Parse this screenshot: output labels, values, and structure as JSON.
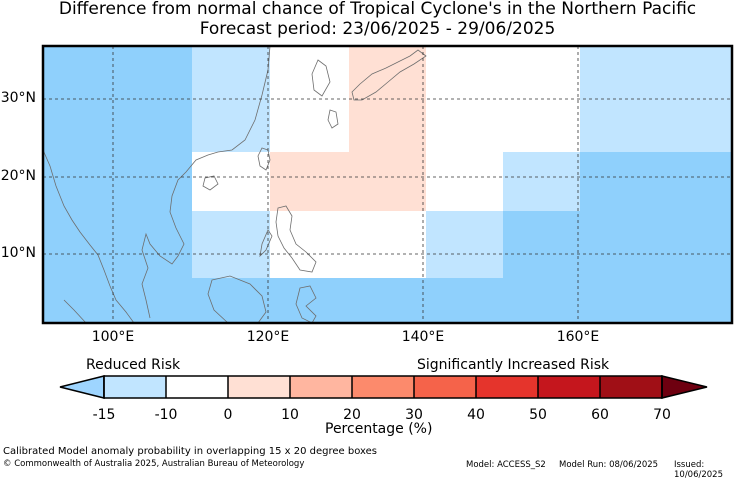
{
  "title_line1": "Difference from normal chance of Tropical Cyclone's in the Northern Pacific",
  "title_line2": "Forecast period: 23/06/2025 - 29/06/2025",
  "lat_ticks": [
    "30°N",
    "20°N",
    "10°N"
  ],
  "lon_ticks": [
    "100°E",
    "120°E",
    "140°E",
    "160°E"
  ],
  "colorbar": {
    "label_left": "Reduced Risk",
    "label_right": "Significantly Increased Risk",
    "title": "Percentage (%)",
    "ticks": [
      "-15",
      "-10",
      "0",
      "10",
      "20",
      "30",
      "40",
      "50",
      "60",
      "70"
    ],
    "colors": [
      "#9ed5ff",
      "#c1e5ff",
      "#ffffff",
      "#ffe0d4",
      "#ffb6a0",
      "#fc8a6c",
      "#f5634a",
      "#e5342c",
      "#c5161d",
      "#a00f16",
      "#6e0010"
    ]
  },
  "footer": {
    "description": "Calibrated Model anomaly probability in overlapping 15 x 20 degree boxes",
    "copyright": "© Commonwealth of Australia 2025, Australian Bureau of Meteorology",
    "model": "Model: ACCESS_S2",
    "model_run": "Model Run: 08/06/2025",
    "issued": "Issued: 10/06/2025"
  },
  "map_colors": {
    "light_blue": "#8fd0fc",
    "pale_blue": "#c1e5ff",
    "white": "#ffffff",
    "peach": "#ffe0d4",
    "coast": "#6e6e6e"
  }
}
